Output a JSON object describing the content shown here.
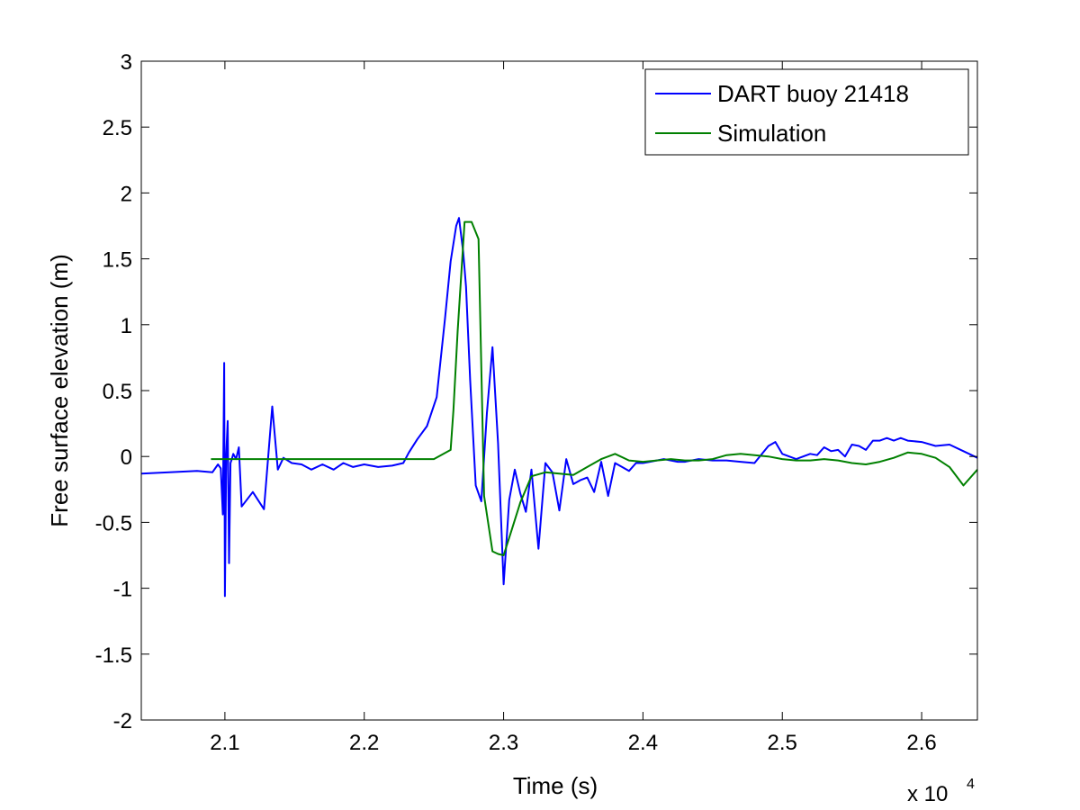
{
  "chart_data": {
    "type": "line",
    "xlabel": "Time (s)",
    "ylabel": "Free surface elevation (m)",
    "x_multiplier_label": {
      "base": "x 10",
      "exponent": "4"
    },
    "xlim": [
      2.04,
      2.64
    ],
    "ylim": [
      -2,
      3
    ],
    "xticks": [
      2.1,
      2.2,
      2.3,
      2.4,
      2.5,
      2.6
    ],
    "xtick_labels": [
      "2.1",
      "2.2",
      "2.3",
      "2.4",
      "2.5",
      "2.6"
    ],
    "yticks": [
      -2,
      -1.5,
      -1,
      -0.5,
      0,
      0.5,
      1,
      1.5,
      2,
      2.5,
      3
    ],
    "ytick_labels": [
      "-2",
      "-1.5",
      "-1",
      "-0.5",
      "0",
      "0.5",
      "1",
      "1.5",
      "2",
      "2.5",
      "3"
    ],
    "grid": false,
    "legend_position": "top-right",
    "series": [
      {
        "name": "DART buoy 21418",
        "color": "#0000ff",
        "x": [
          2.04,
          2.06,
          2.08,
          2.091,
          2.095,
          2.097,
          2.0985,
          2.0995,
          2.1,
          2.101,
          2.102,
          2.103,
          2.104,
          2.105,
          2.106,
          2.108,
          2.11,
          2.112,
          2.12,
          2.128,
          2.134,
          2.138,
          2.142,
          2.148,
          2.155,
          2.162,
          2.17,
          2.178,
          2.185,
          2.192,
          2.2,
          2.21,
          2.22,
          2.228,
          2.232,
          2.238,
          2.245,
          2.252,
          2.258,
          2.262,
          2.266,
          2.268,
          2.271,
          2.273,
          2.276,
          2.28,
          2.284,
          2.288,
          2.292,
          2.296,
          2.3,
          2.304,
          2.308,
          2.312,
          2.316,
          2.32,
          2.325,
          2.33,
          2.335,
          2.34,
          2.345,
          2.35,
          2.355,
          2.36,
          2.365,
          2.37,
          2.375,
          2.38,
          2.385,
          2.39,
          2.395,
          2.4,
          2.405,
          2.41,
          2.415,
          2.42,
          2.425,
          2.43,
          2.44,
          2.45,
          2.46,
          2.47,
          2.48,
          2.49,
          2.495,
          2.5,
          2.51,
          2.52,
          2.525,
          2.53,
          2.535,
          2.54,
          2.545,
          2.55,
          2.555,
          2.56,
          2.565,
          2.57,
          2.575,
          2.58,
          2.585,
          2.59,
          2.6,
          2.61,
          2.62,
          2.63,
          2.64
        ],
        "y": [
          -0.13,
          -0.12,
          -0.11,
          -0.12,
          -0.06,
          -0.09,
          -0.44,
          0.71,
          -1.06,
          0.02,
          0.27,
          -0.81,
          -0.05,
          -0.02,
          0.02,
          -0.02,
          0.07,
          -0.38,
          -0.27,
          -0.4,
          0.38,
          -0.1,
          -0.01,
          -0.05,
          -0.06,
          -0.1,
          -0.06,
          -0.1,
          -0.05,
          -0.08,
          -0.06,
          -0.08,
          -0.07,
          -0.05,
          0.03,
          0.13,
          0.23,
          0.45,
          1.05,
          1.48,
          1.75,
          1.81,
          1.55,
          1.29,
          0.58,
          -0.22,
          -0.34,
          0.33,
          0.83,
          0.1,
          -0.97,
          -0.33,
          -0.1,
          -0.28,
          -0.42,
          -0.1,
          -0.7,
          -0.05,
          -0.12,
          -0.41,
          -0.02,
          -0.21,
          -0.18,
          -0.16,
          -0.27,
          -0.04,
          -0.3,
          -0.05,
          -0.08,
          -0.11,
          -0.05,
          -0.05,
          -0.04,
          -0.03,
          -0.02,
          -0.03,
          -0.04,
          -0.04,
          -0.02,
          -0.03,
          -0.03,
          -0.04,
          -0.05,
          0.08,
          0.11,
          0.02,
          -0.02,
          0.02,
          0.01,
          0.07,
          0.04,
          0.05,
          0.0,
          0.09,
          0.08,
          0.05,
          0.12,
          0.12,
          0.14,
          0.12,
          0.14,
          0.12,
          0.11,
          0.08,
          0.09,
          0.04,
          -0.01
        ]
      },
      {
        "name": "Simulation",
        "color": "#008000",
        "x": [
          2.09,
          2.15,
          2.2,
          2.25,
          2.262,
          2.264,
          2.267,
          2.272,
          2.277,
          2.282,
          2.286,
          2.292,
          2.296,
          2.3,
          2.306,
          2.312,
          2.32,
          2.33,
          2.34,
          2.35,
          2.36,
          2.37,
          2.38,
          2.39,
          2.4,
          2.41,
          2.42,
          2.43,
          2.44,
          2.45,
          2.46,
          2.47,
          2.48,
          2.49,
          2.5,
          2.51,
          2.52,
          2.53,
          2.54,
          2.55,
          2.56,
          2.57,
          2.58,
          2.59,
          2.6,
          2.61,
          2.62,
          2.63,
          2.64
        ],
        "y": [
          -0.02,
          -0.02,
          -0.02,
          -0.02,
          0.05,
          0.35,
          0.95,
          1.78,
          1.78,
          1.65,
          -0.3,
          -0.72,
          -0.74,
          -0.75,
          -0.55,
          -0.35,
          -0.15,
          -0.12,
          -0.13,
          -0.14,
          -0.08,
          -0.02,
          0.02,
          -0.03,
          -0.04,
          -0.03,
          -0.02,
          -0.03,
          -0.03,
          -0.02,
          0.01,
          0.02,
          0.01,
          0.0,
          -0.02,
          -0.03,
          -0.03,
          -0.02,
          -0.03,
          -0.05,
          -0.06,
          -0.04,
          -0.01,
          0.03,
          0.02,
          -0.01,
          -0.08,
          -0.22,
          -0.1
        ]
      }
    ]
  }
}
